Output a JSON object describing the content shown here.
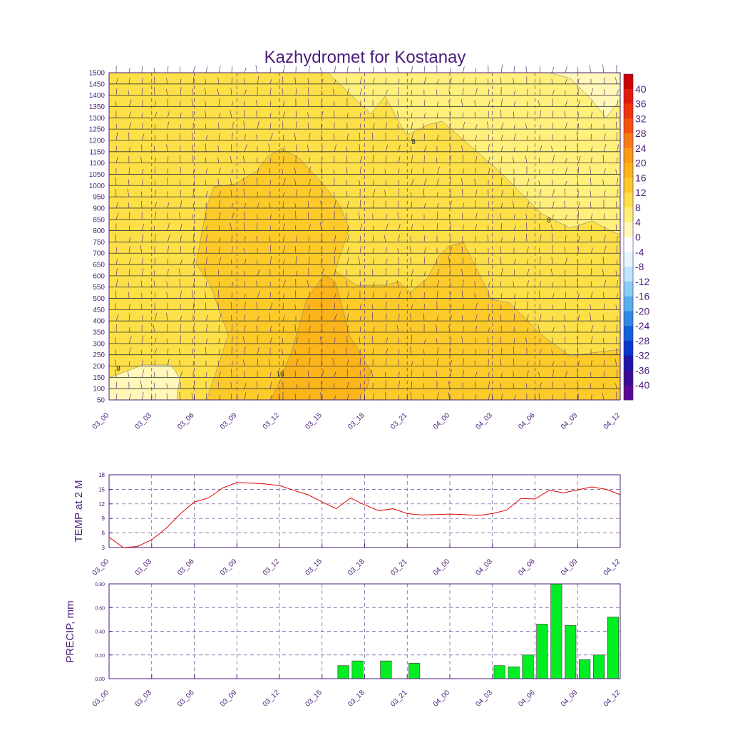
{
  "chart_data": [
    {
      "type": "heatmap",
      "title": "Kazhydromet for Kostanay",
      "xlabel": "",
      "ylabel": "",
      "x_ticks": [
        "03_00",
        "03_03",
        "03_06",
        "03_09",
        "03_12",
        "03_15",
        "03_18",
        "03_21",
        "04_00",
        "04_03",
        "04_06",
        "04_09",
        "04_12"
      ],
      "y_ticks": [
        1500,
        1450,
        1400,
        1350,
        1300,
        1250,
        1200,
        1150,
        1100,
        1050,
        1000,
        950,
        900,
        850,
        800,
        750,
        700,
        650,
        600,
        550,
        500,
        450,
        400,
        350,
        300,
        250,
        200,
        150,
        100,
        50
      ],
      "ylim": [
        50,
        1500
      ],
      "contour_labels": [
        "8",
        "8",
        "8",
        "16"
      ],
      "colorbar": {
        "labels": [
          "40",
          "36",
          "32",
          "28",
          "24",
          "20",
          "16",
          "12",
          "8",
          "4",
          "0",
          "-4",
          "-8",
          "-12",
          "-16",
          "-20",
          "-24",
          "-28",
          "-32",
          "-36",
          "-40"
        ],
        "colors": [
          "#cc0000",
          "#e31a0a",
          "#f0340c",
          "#f5520e",
          "#f77d12",
          "#f99d14",
          "#fbb41a",
          "#fccb2a",
          "#fde048",
          "#fef07a",
          "#fff8b8",
          "#ffffff",
          "#e6f6fc",
          "#bfe6f7",
          "#8ccdf2",
          "#58afea",
          "#2f8ae0",
          "#1461d8",
          "#0a38c9",
          "#1d17a6",
          "#3a0f8f",
          "#5a0a90"
        ]
      },
      "grid": true
    },
    {
      "type": "line",
      "ylabel": "TEMP at 2 M",
      "x_ticks": [
        "03_00",
        "03_03",
        "03_06",
        "03_09",
        "03_12",
        "03_15",
        "03_18",
        "03_21",
        "04_00",
        "04_03",
        "04_06",
        "04_09",
        "04_12"
      ],
      "y_ticks": [
        "3",
        "6",
        "9",
        "12",
        "15",
        "18"
      ],
      "ylim": [
        3,
        18
      ],
      "x": [
        0,
        1,
        2,
        3,
        4,
        5,
        6,
        7,
        8,
        9,
        10,
        11,
        12,
        13,
        14,
        15,
        16,
        17,
        18,
        19,
        20,
        21,
        22,
        23,
        24,
        25,
        26,
        27,
        28,
        29,
        30,
        31,
        32,
        33,
        34,
        35,
        36
      ],
      "series": [
        {
          "color": "#e00000",
          "values": [
            5.1,
            3.0,
            3.2,
            4.6,
            6.9,
            9.9,
            12.4,
            13.2,
            15.3,
            16.4,
            16.3,
            16.1,
            15.8,
            14.8,
            13.9,
            12.4,
            11.0,
            13.2,
            11.8,
            10.6,
            11.0,
            10.0,
            9.7,
            9.8,
            9.9,
            9.8,
            9.6,
            10.0,
            10.7,
            13.1,
            13.0,
            14.8,
            14.3,
            14.9,
            15.5,
            15.0,
            13.9
          ]
        }
      ],
      "grid": true
    },
    {
      "type": "bar",
      "ylabel": "PRECIP, mm",
      "x_ticks": [
        "03_00",
        "03_03",
        "03_06",
        "03_09",
        "03_12",
        "03_15",
        "03_18",
        "03_21",
        "04_00",
        "04_03",
        "04_06",
        "04_09",
        "04_12"
      ],
      "y_ticks": [
        "0.00",
        "0.20",
        "0.40",
        "0.60",
        "0.80"
      ],
      "ylim": [
        0,
        0.8
      ],
      "x": [
        17,
        18,
        20,
        22,
        28,
        29,
        30,
        31,
        32,
        33,
        34,
        35,
        36
      ],
      "values": [
        0.11,
        0.15,
        0.15,
        0.13,
        0.11,
        0.1,
        0.2,
        0.46,
        0.8,
        0.45,
        0.16,
        0.2,
        0.52
      ],
      "bar_color": "#00ee22",
      "grid": true
    }
  ]
}
